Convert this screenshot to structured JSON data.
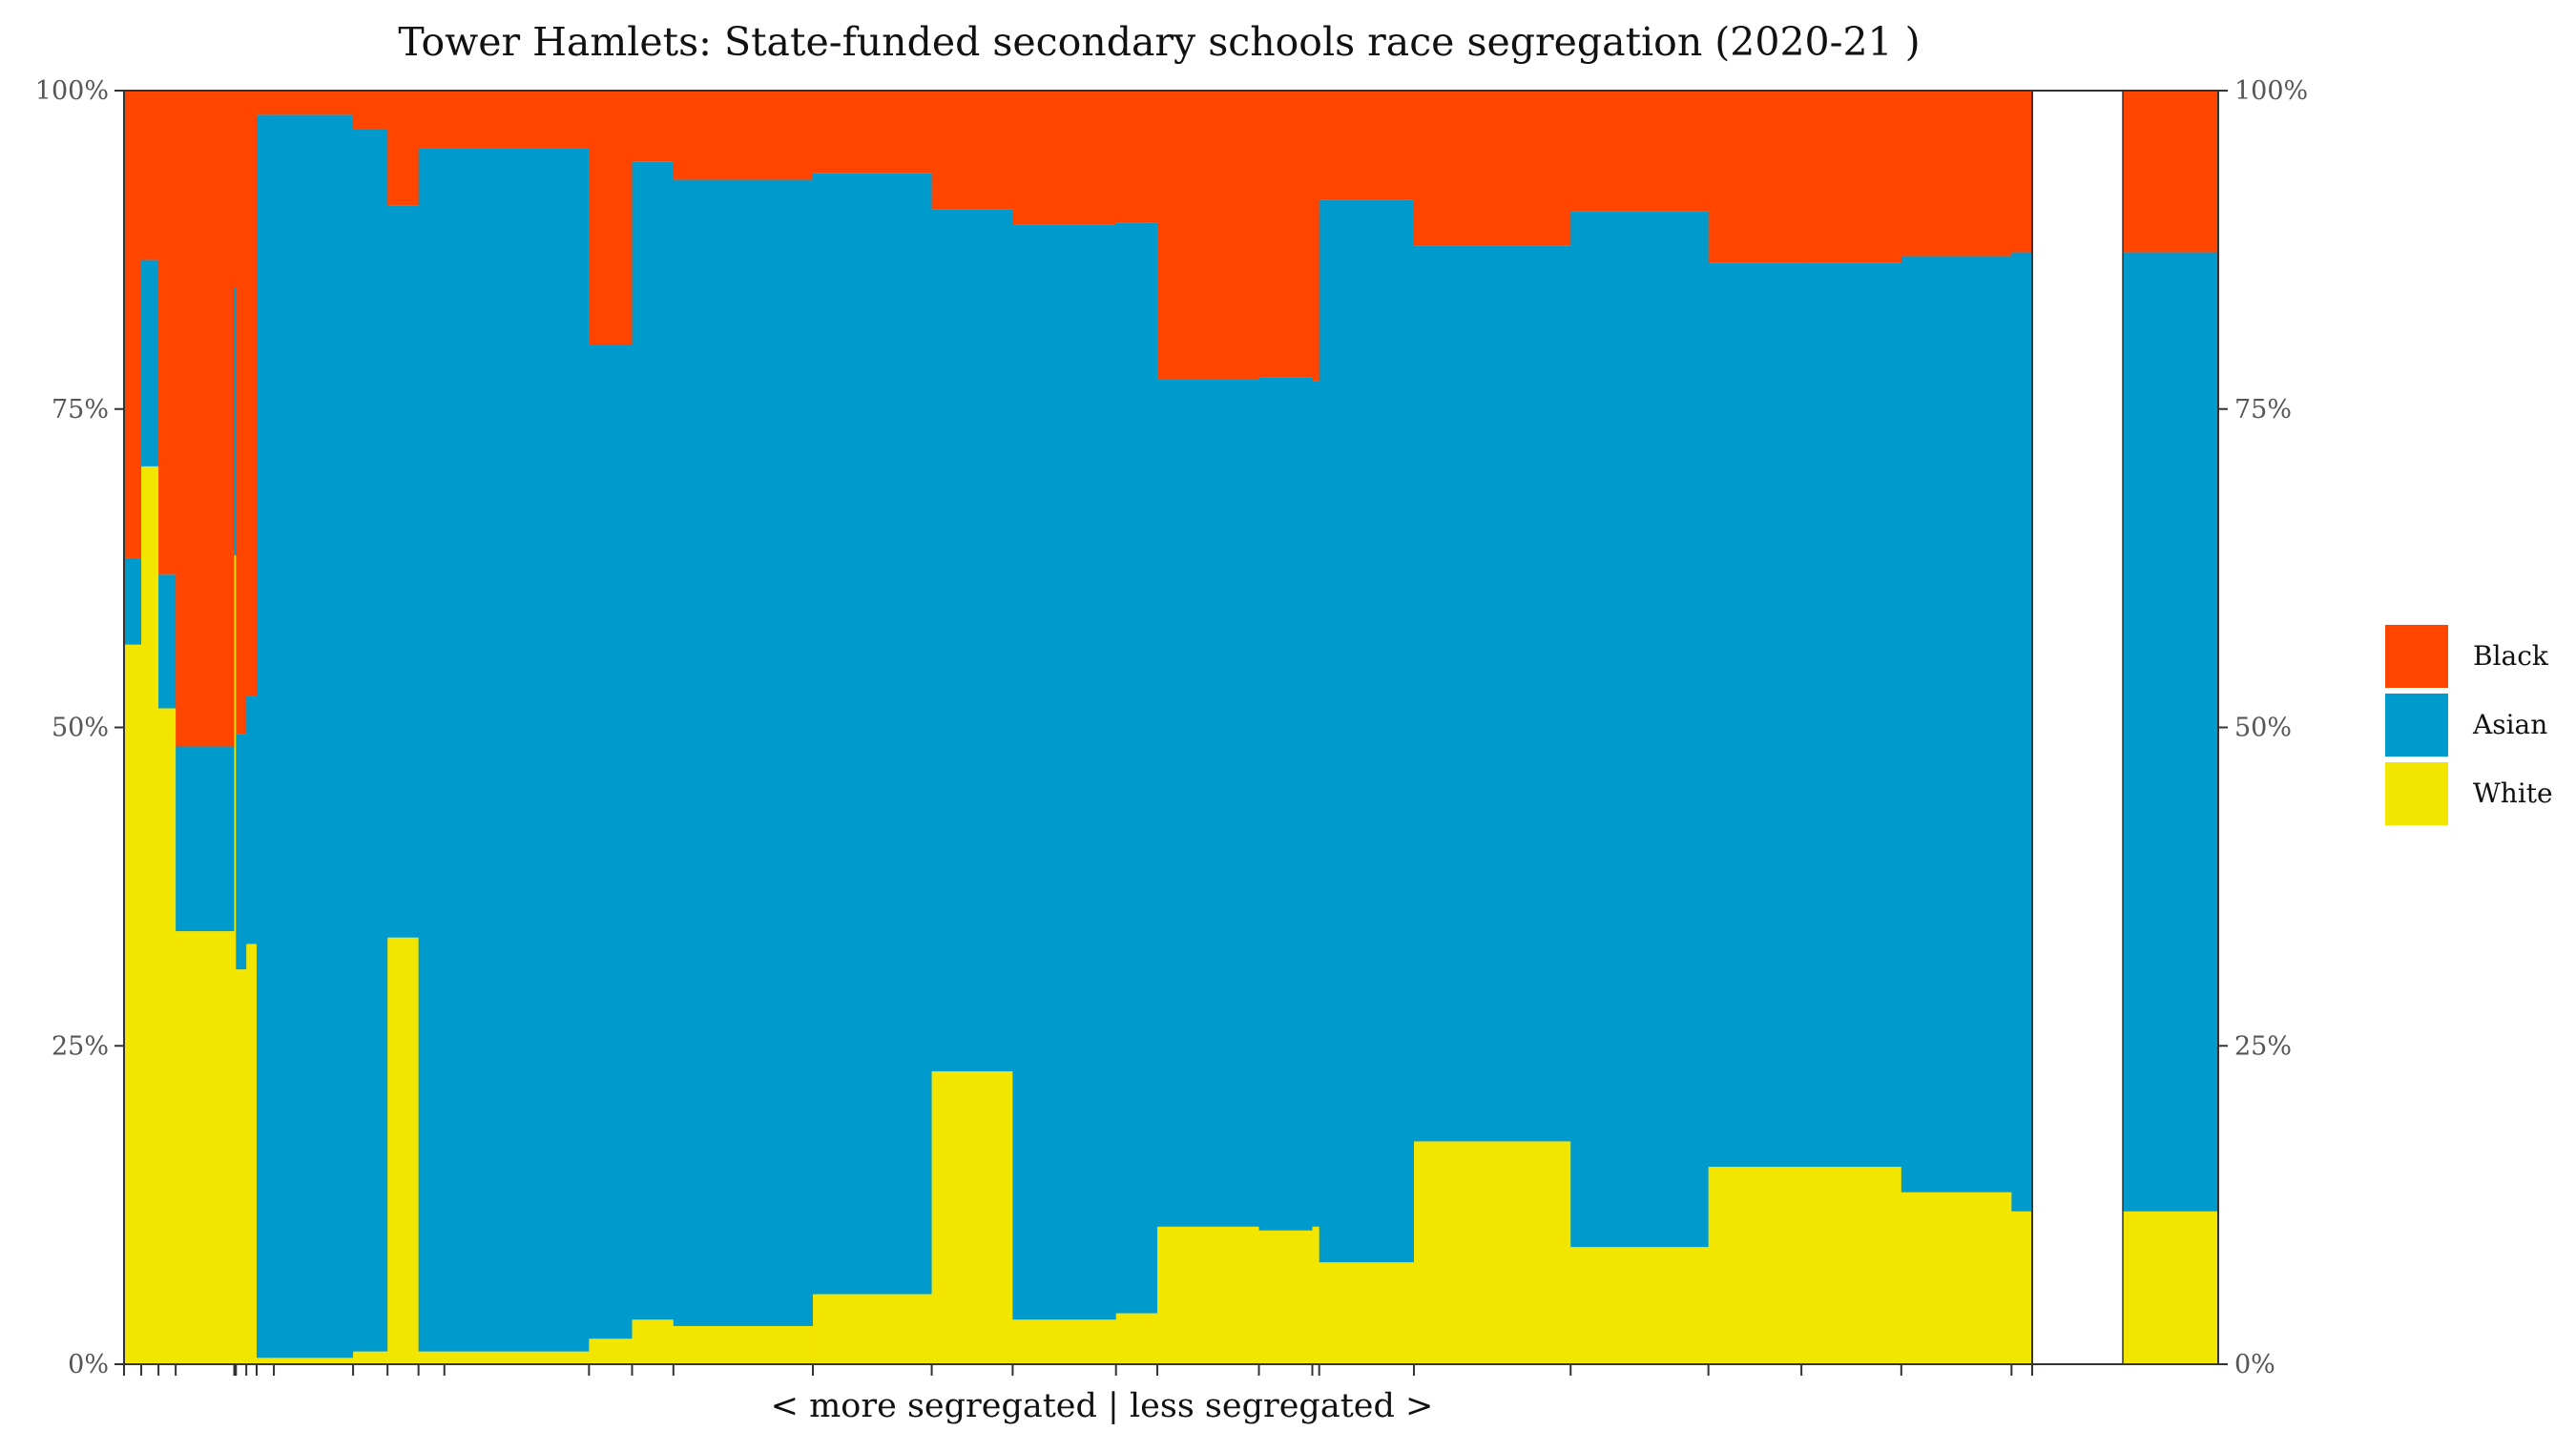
{
  "chart_data": {
    "type": "bar",
    "title": "Tower Hamlets: State-funded secondary schools race segregation (2020-21 )",
    "xlabel": "< more segregated | less segregated >",
    "ylabel": "",
    "ylim": [
      0,
      100
    ],
    "y_ticks": [
      "0%",
      "25%",
      "50%",
      "75%",
      "100%"
    ],
    "legend": {
      "position": "right",
      "items": [
        "Black",
        "Asian",
        "White"
      ]
    },
    "colors": {
      "Black": "#FF4500",
      "Asian": "#009ACD",
      "White": "#F2E500"
    },
    "grid": false,
    "bar_widths_relative": [
      20,
      20,
      20,
      68,
      2,
      12,
      12,
      20,
      92,
      40,
      36,
      30,
      168,
      50,
      48,
      162,
      138,
      94,
      120,
      48,
      118,
      62,
      8,
      110,
      182,
      160,
      108,
      116,
      128,
      24
    ],
    "series": [
      {
        "name": "White",
        "values": [
          56.5,
          70.5,
          51.5,
          34,
          63.5,
          31,
          33,
          0.5,
          0.5,
          1,
          33.5,
          1,
          1,
          2,
          3.5,
          3,
          5.5,
          23,
          3.5,
          4,
          10.8,
          10.5,
          10.8,
          8,
          17.5,
          9.2,
          15.5,
          15.5,
          13.5,
          12
        ]
      },
      {
        "name": "Asian",
        "values": [
          6.8,
          16.2,
          10.5,
          14.5,
          21,
          18.5,
          19.5,
          97.6,
          97.6,
          96,
          57.5,
          94.5,
          94.5,
          78,
          90.9,
          90,
          88,
          67.7,
          86,
          85.6,
          66.5,
          67,
          66.4,
          83.4,
          70.3,
          81.3,
          71,
          71,
          73.5,
          75.3
        ]
      },
      {
        "name": "Black",
        "values": [
          36.7,
          13.3,
          38,
          51.5,
          15.5,
          50.5,
          47.5,
          1.9,
          1.9,
          3,
          9,
          4.5,
          4.5,
          20,
          5.6,
          7,
          6.5,
          9.3,
          10.5,
          10.4,
          22.7,
          22.5,
          22.8,
          8.6,
          12.2,
          9.5,
          13.5,
          13.5,
          13,
          12.7
        ]
      }
    ],
    "summary_bar": {
      "White": 12,
      "Asian": 75.3,
      "Black": 12.7
    }
  }
}
